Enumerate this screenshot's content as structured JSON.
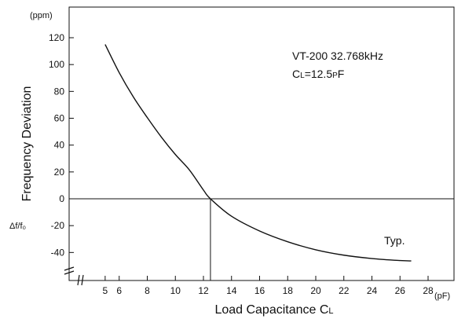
{
  "chart_data": {
    "type": "line",
    "y_unit": "(ppm)",
    "x_unit": "(pF)",
    "ylabel": "Frequency Deviation",
    "ylabel_secondary": "Δf/f₀",
    "xlabel_main": "Load Capacitance C",
    "xlabel_sub": "L",
    "annotation_line1": "VT-200  32.768kHz",
    "annotation_line2_a": "C",
    "annotation_line2_sub": "L",
    "annotation_line2_b": "=12.5",
    "annotation_line2_unit_small": "P",
    "annotation_line2_unit": "F",
    "typ_label": "Typ.",
    "ylim": [
      -50,
      130
    ],
    "xlim": [
      0,
      29
    ],
    "grid": false,
    "y_ticks": [
      120,
      100,
      80,
      60,
      40,
      20,
      0,
      -20,
      -40
    ],
    "x_ticks": [
      5,
      6,
      8,
      10,
      12,
      14,
      16,
      18,
      20,
      22,
      24,
      26,
      28
    ],
    "nominal_cl": 12.5,
    "series": [
      {
        "x": [
          5,
          6,
          7,
          8,
          9,
          10,
          11,
          12,
          12.5,
          14,
          16,
          18,
          20,
          22,
          24,
          26,
          26.8
        ],
        "values": [
          115,
          94,
          76,
          60.5,
          46,
          33,
          21.5,
          6.5,
          0,
          -13,
          -24,
          -32,
          -38,
          -42,
          -44.5,
          -46,
          -46.3
        ]
      }
    ]
  }
}
